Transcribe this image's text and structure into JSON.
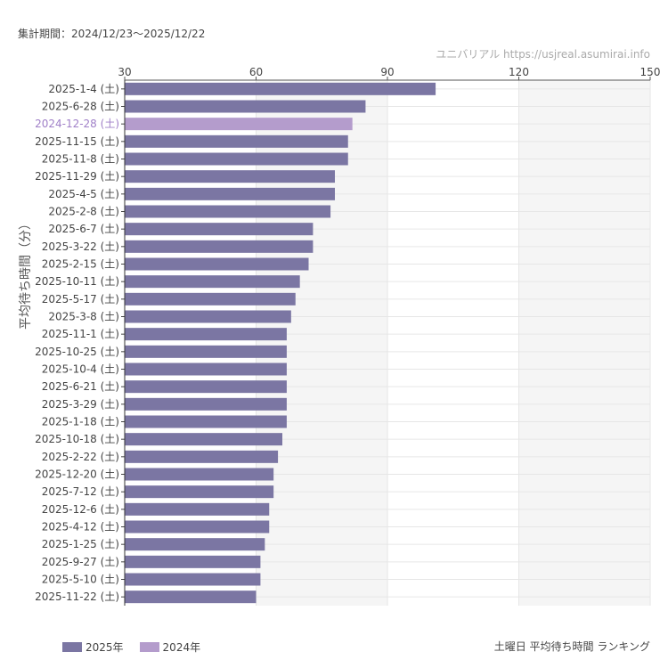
{
  "header": {
    "period": "集計期間：2024/12/23〜2025/12/22",
    "credit": "ユニバリアル https://usjreal.asumirai.info"
  },
  "colors": {
    "y2025": "#7b76a3",
    "y2024": "#b49ccc",
    "band": "#f5f5f5",
    "grid": "#e6e6e6"
  },
  "chart_data": {
    "type": "bar",
    "orientation": "horizontal",
    "title": "土曜日 平均待ち時間 ランキング",
    "ylabel": "平均待ち時間（分）",
    "xlim": [
      30,
      150
    ],
    "xticks": [
      30,
      60,
      90,
      120,
      150
    ],
    "x_axis_position": "top",
    "legend_placement": "bottom-left",
    "legend": [
      {
        "name": "2025年",
        "color": "#7b76a3"
      },
      {
        "name": "2024年",
        "color": "#b49ccc"
      }
    ],
    "categories": [
      "2025-1-4 (土)",
      "2025-6-28 (土)",
      "2024-12-28 (土)",
      "2025-11-15 (土)",
      "2025-11-8 (土)",
      "2025-11-29 (土)",
      "2025-4-5 (土)",
      "2025-2-8 (土)",
      "2025-6-7 (土)",
      "2025-3-22 (土)",
      "2025-2-15 (土)",
      "2025-10-11 (土)",
      "2025-5-17 (土)",
      "2025-3-8 (土)",
      "2025-11-1 (土)",
      "2025-10-25 (土)",
      "2025-10-4 (土)",
      "2025-6-21 (土)",
      "2025-3-29 (土)",
      "2025-1-18 (土)",
      "2025-10-18 (土)",
      "2025-2-22 (土)",
      "2025-12-20 (土)",
      "2025-7-12 (土)",
      "2025-12-6 (土)",
      "2025-4-12 (土)",
      "2025-1-25 (土)",
      "2025-9-27 (土)",
      "2025-5-10 (土)",
      "2025-11-22 (土)"
    ],
    "values": [
      101,
      85,
      82,
      81,
      81,
      78,
      78,
      77,
      73,
      73,
      72,
      70,
      69,
      68,
      67,
      67,
      67,
      67,
      67,
      67,
      66,
      65,
      64,
      64,
      63,
      63,
      62,
      61,
      61,
      60
    ],
    "series_year": [
      "2025",
      "2025",
      "2024",
      "2025",
      "2025",
      "2025",
      "2025",
      "2025",
      "2025",
      "2025",
      "2025",
      "2025",
      "2025",
      "2025",
      "2025",
      "2025",
      "2025",
      "2025",
      "2025",
      "2025",
      "2025",
      "2025",
      "2025",
      "2025",
      "2025",
      "2025",
      "2025",
      "2025",
      "2025",
      "2025"
    ]
  }
}
